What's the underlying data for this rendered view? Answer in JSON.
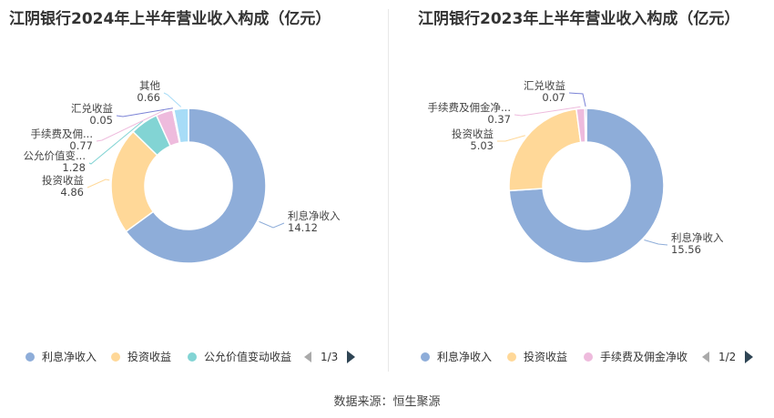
{
  "source_text": "数据来源：恒生聚源",
  "chart_data": [
    {
      "type": "pie",
      "title": "江阴银行2024年上半年营业收入构成（亿元）",
      "slices": [
        {
          "name": "利息净收入",
          "label": "利息净收入",
          "value": 14.12,
          "value_label": "14.12",
          "color": "#8eadd9"
        },
        {
          "name": "投资收益",
          "label": "投资收益",
          "value": 4.86,
          "value_label": "4.86",
          "color": "#ffd898"
        },
        {
          "name": "公允价值变动收益",
          "label": "公允价值变...",
          "value": 1.28,
          "value_label": "1.28",
          "color": "#82d4d4"
        },
        {
          "name": "手续费及佣金净收入",
          "label": "手续费及佣...",
          "value": 0.77,
          "value_label": "0.77",
          "color": "#eebbdd"
        },
        {
          "name": "汇兑收益",
          "label": "汇兑收益",
          "value": 0.05,
          "value_label": "0.05",
          "color": "#7b83d6"
        },
        {
          "name": "其他",
          "label": "其他",
          "value": 0.66,
          "value_label": "0.66",
          "color": "#a7dcf7"
        }
      ],
      "legend": {
        "items": [
          "利息净收入",
          "投资收益",
          "公允价值变动收益"
        ],
        "page": "1/3"
      }
    },
    {
      "type": "pie",
      "title": "江阴银行2023年上半年营业收入构成（亿元）",
      "slices": [
        {
          "name": "利息净收入",
          "label": "利息净收入",
          "value": 15.56,
          "value_label": "15.56",
          "color": "#8eadd9"
        },
        {
          "name": "投资收益",
          "label": "投资收益",
          "value": 5.03,
          "value_label": "5.03",
          "color": "#ffd898"
        },
        {
          "name": "手续费及佣金净收入",
          "label": "手续费及佣金净...",
          "value": 0.37,
          "value_label": "0.37",
          "color": "#eebbdd"
        },
        {
          "name": "汇兑收益",
          "label": "汇兑收益",
          "value": 0.07,
          "value_label": "0.07",
          "color": "#7b83d6"
        }
      ],
      "legend": {
        "items": [
          "利息净收入",
          "投资收益",
          "手续费及佣金净收"
        ],
        "page": "1/2"
      }
    }
  ]
}
